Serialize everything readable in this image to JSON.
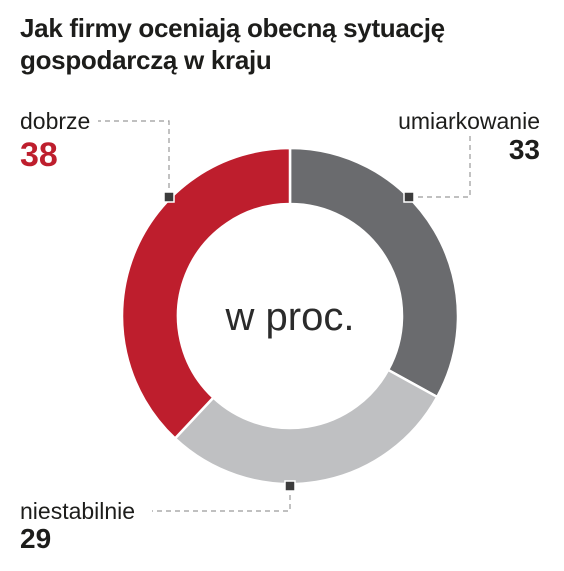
{
  "chart_data": {
    "type": "pie",
    "title_lines": [
      "Jak firmy oceniają obecną sytuację",
      "gospodarczą w kraju"
    ],
    "center_label": "w proc.",
    "slices": [
      {
        "label": "umiarkowanie",
        "value": 33,
        "color": "#6a6b6e",
        "value_color": "#1d1d1b"
      },
      {
        "label": "niestabilnie",
        "value": 29,
        "color": "#bfc0c2",
        "value_color": "#1d1d1b"
      },
      {
        "label": "dobrze",
        "value": 38,
        "color": "#be1e2d",
        "value_color": "#be1e2d"
      }
    ]
  }
}
